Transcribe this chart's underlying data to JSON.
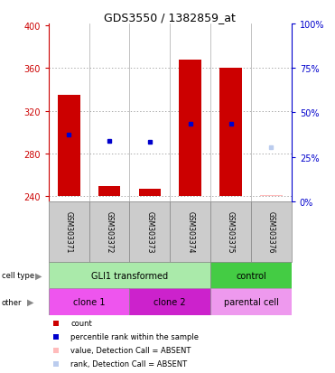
{
  "title": "GDS3550 / 1382859_at",
  "samples": [
    "GSM303371",
    "GSM303372",
    "GSM303373",
    "GSM303374",
    "GSM303375",
    "GSM303376"
  ],
  "ylim_left": [
    235,
    402
  ],
  "ylim_right": [
    0,
    100
  ],
  "yticks_left": [
    240,
    280,
    320,
    360,
    400
  ],
  "yticks_right": [
    0,
    25,
    50,
    75,
    100
  ],
  "bar_base": 240,
  "bar_values": [
    335,
    249,
    247,
    368,
    360,
    null
  ],
  "bar_absent": [
    false,
    false,
    false,
    false,
    false,
    true
  ],
  "absent_bar_value": 241,
  "blue_dot_values": [
    298,
    292,
    291,
    308,
    308,
    null
  ],
  "blue_dot_absent": [
    false,
    false,
    false,
    false,
    false,
    true
  ],
  "absent_blue_value": 286,
  "cell_type_groups": [
    {
      "label": "GLI1 transformed",
      "start": 0,
      "end": 4,
      "color": "#aaeaaa"
    },
    {
      "label": "control",
      "start": 4,
      "end": 6,
      "color": "#44cc44"
    }
  ],
  "other_groups": [
    {
      "label": "clone 1",
      "start": 0,
      "end": 2,
      "color": "#ee55ee"
    },
    {
      "label": "clone 2",
      "start": 2,
      "end": 4,
      "color": "#cc22cc"
    },
    {
      "label": "parental cell",
      "start": 4,
      "end": 6,
      "color": "#ee99ee"
    }
  ],
  "legend_items": [
    {
      "color": "#cc0000",
      "marker": "s",
      "label": "count"
    },
    {
      "color": "#0000cc",
      "marker": "s",
      "label": "percentile rank within the sample"
    },
    {
      "color": "#ffbbbb",
      "marker": "s",
      "label": "value, Detection Call = ABSENT"
    },
    {
      "color": "#bbccee",
      "marker": "s",
      "label": "rank, Detection Call = ABSENT"
    }
  ],
  "left_axis_color": "#cc0000",
  "right_axis_color": "#0000cc",
  "bar_color": "#cc0000",
  "absent_bar_color": "#ffbbbb",
  "blue_color": "#0000cc",
  "absent_blue_color": "#bbccee",
  "bar_width": 0.55,
  "grid_color": "#888888",
  "bg_color": "#ffffff"
}
